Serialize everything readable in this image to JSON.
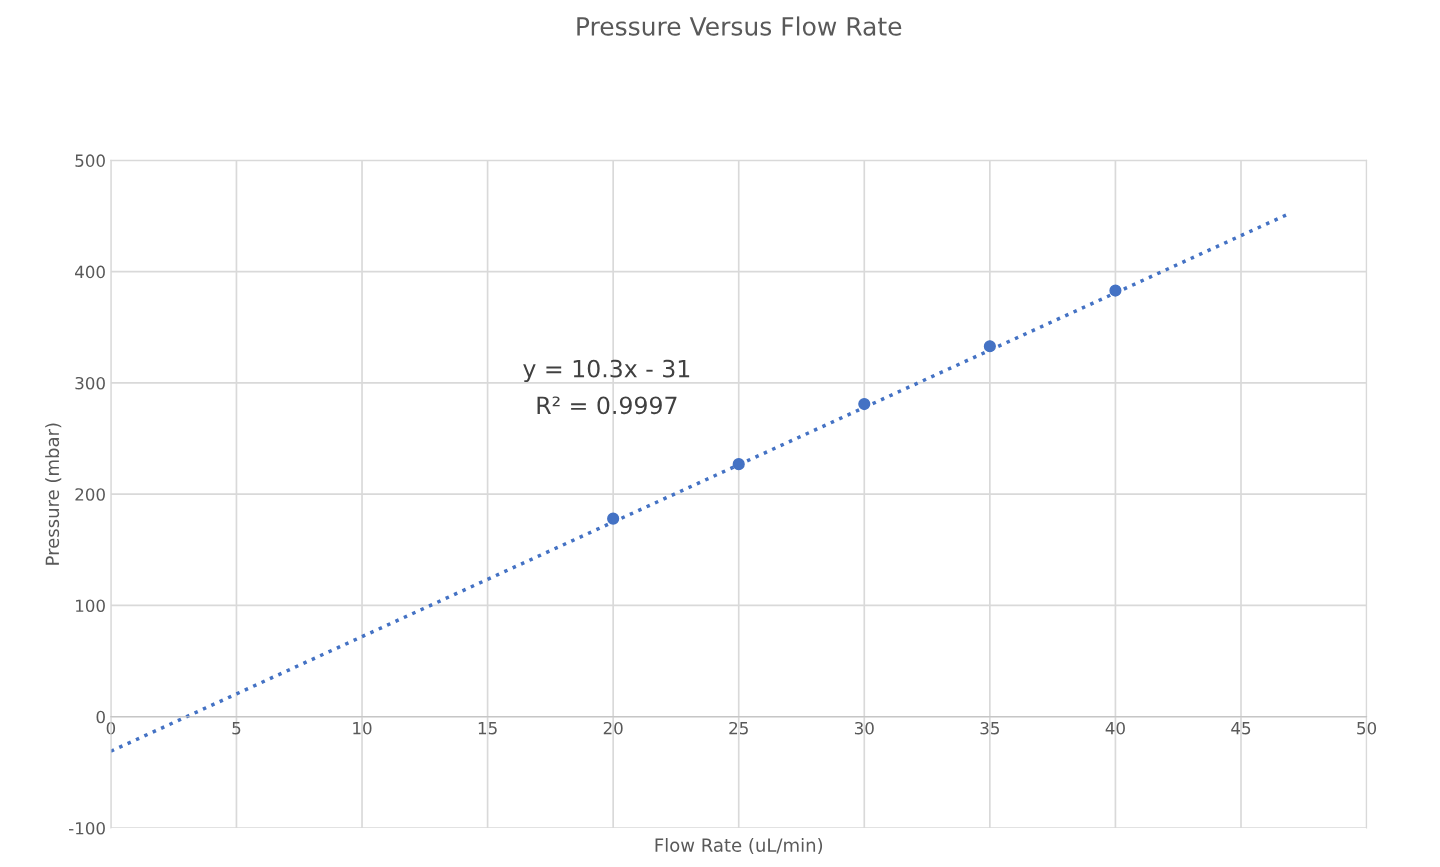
{
  "chart_data": {
    "type": "scatter",
    "title": "Pressure Versus Flow Rate",
    "xlabel": "Flow Rate (uL/min)",
    "ylabel": "Pressure (mbar)",
    "series": [
      {
        "color": "#4472c4",
        "marker": "circle",
        "x": [
          20,
          25,
          30,
          35,
          40
        ],
        "values": [
          178,
          227,
          281,
          333,
          383
        ]
      },
      {
        "type": "line",
        "color": "#4472c4",
        "marker": "none",
        "line_style": "dotted",
        "x": [
          0,
          47
        ],
        "values": [
          -31,
          453
        ]
      }
    ],
    "xlim": [
      0,
      50
    ],
    "xticks": [
      0,
      5,
      10,
      15,
      20,
      25,
      30,
      35,
      40,
      45,
      50
    ],
    "ylim": [
      -100,
      500
    ],
    "yticks": [
      -100,
      0,
      100,
      200,
      300,
      400,
      500
    ],
    "grid": true,
    "annotations": [
      "y = 10.3x - 31",
      "R² = 0.9997"
    ]
  }
}
